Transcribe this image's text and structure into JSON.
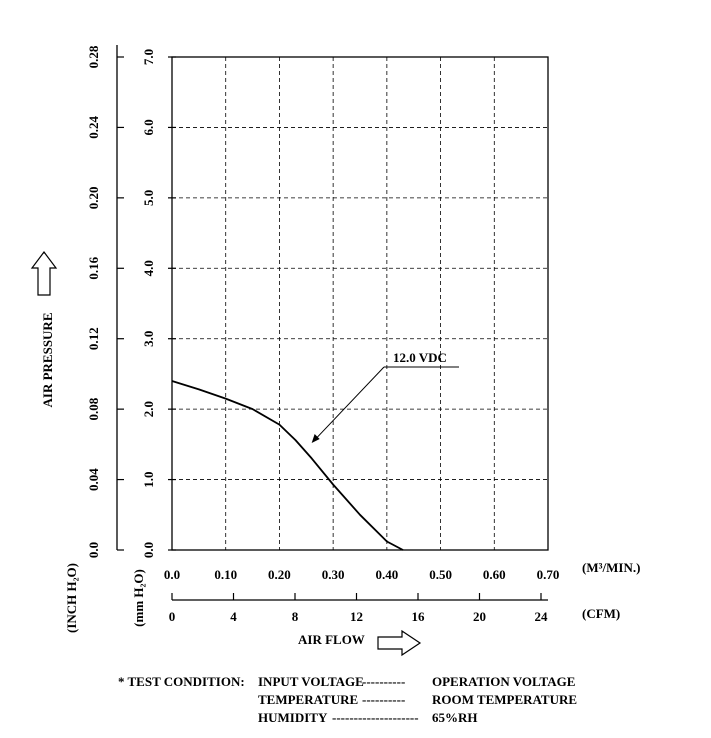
{
  "chart_data": {
    "type": "line",
    "x_axis_primary": {
      "unit": "(M³/MIN.)",
      "ticks": [
        "0.0",
        "0.10",
        "0.20",
        "0.30",
        "0.40",
        "0.50",
        "0.60",
        "0.70"
      ],
      "range": [
        0.0,
        0.7
      ]
    },
    "x_axis_secondary": {
      "unit": "(CFM)",
      "ticks": [
        "0",
        "4",
        "8",
        "12",
        "16",
        "20",
        "24"
      ]
    },
    "y_axis_primary": {
      "unit": "(mm H₂O)",
      "ticks": [
        "0.0",
        "1.0",
        "2.0",
        "3.0",
        "4.0",
        "5.0",
        "6.0",
        "7.0"
      ],
      "range": [
        0.0,
        7.0
      ]
    },
    "y_axis_secondary": {
      "unit": "(INCH H₂O)",
      "ticks": [
        "0.0",
        "0.04",
        "0.08",
        "0.12",
        "0.16",
        "0.20",
        "0.24",
        "0.28"
      ]
    },
    "xlabel": "AIR FLOW",
    "ylabel": "AIR PRESSURE",
    "grid": true,
    "series": [
      {
        "name": "12.0 VDC",
        "x": [
          0.0,
          0.05,
          0.1,
          0.15,
          0.2,
          0.23,
          0.26,
          0.3,
          0.35,
          0.4,
          0.43
        ],
        "y": [
          2.4,
          2.28,
          2.15,
          2.0,
          1.78,
          1.56,
          1.3,
          0.93,
          0.5,
          0.12,
          0.0
        ]
      }
    ],
    "annotation": {
      "text": "12.0 VDC",
      "points_to": [
        0.26,
        1.52
      ]
    }
  },
  "test_condition": {
    "heading": "* TEST CONDITION:",
    "rows": [
      {
        "item": "INPUT VOLTAGE",
        "dashes": "----------",
        "value": "OPERATION VOLTAGE"
      },
      {
        "item": "TEMPERATURE",
        "dashes": "----------",
        "value": "ROOM TEMPERATURE"
      },
      {
        "item": "HUMIDITY",
        "dashes": "--------------------",
        "value": "65%RH"
      }
    ]
  }
}
